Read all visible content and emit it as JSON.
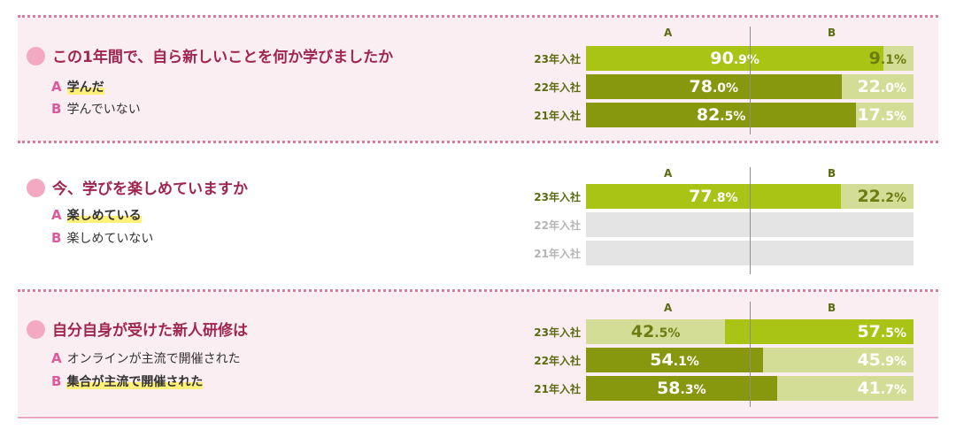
{
  "colors": {
    "bright_green": "#a9c414",
    "dark_green": "#87980f",
    "light_green": "#d3dd95",
    "empty": "#e4e4e4",
    "title": "#a0264f",
    "key": "#e0589a",
    "row_label": "#5a6b10"
  },
  "questions": [
    {
      "title": "この1年間で、自ら新しいことを何か学びましたか",
      "option_a": "学んだ",
      "option_b": "学んでいない",
      "col_a": "A",
      "col_b": "B",
      "rows": [
        {
          "label": "23年入社",
          "a": 90.9,
          "b": 9.1,
          "a_text": "90.9",
          "b_text": "9.1",
          "a_color": "bright_green",
          "b_color": "light_green",
          "a_text_color": "#ffffff",
          "b_text_color": "#6d7d12"
        },
        {
          "label": "22年入社",
          "a": 78.0,
          "b": 22.0,
          "a_text": "78.0",
          "b_text": "22.0",
          "a_color": "dark_green",
          "b_color": "light_green",
          "a_text_color": "#ffffff",
          "b_text_color": "#ffffff"
        },
        {
          "label": "21年入社",
          "a": 82.5,
          "b": 17.5,
          "a_text": "82.5",
          "b_text": "17.5",
          "a_color": "dark_green",
          "b_color": "light_green",
          "a_text_color": "#ffffff",
          "b_text_color": "#ffffff"
        }
      ]
    },
    {
      "title": "今、学びを楽しめていますか",
      "option_a": "楽しめている",
      "option_b": "楽しめていない",
      "col_a": "A",
      "col_b": "B",
      "rows": [
        {
          "label": "23年入社",
          "a": 77.8,
          "b": 22.2,
          "a_text": "77.8",
          "b_text": "22.2",
          "a_color": "bright_green",
          "b_color": "light_green",
          "a_text_color": "#ffffff",
          "b_text_color": "#6d7d12"
        },
        {
          "label": "22年入社",
          "empty": true
        },
        {
          "label": "21年入社",
          "empty": true
        }
      ]
    },
    {
      "title": "自分自身が受けた新人研修は",
      "option_a": "オンラインが主流で開催された",
      "option_b": "集合が主流で開催された",
      "col_a": "A",
      "col_b": "B",
      "rows": [
        {
          "label": "23年入社",
          "a": 42.5,
          "b": 57.5,
          "a_text": "42.5",
          "b_text": "57.5",
          "a_color": "light_green",
          "b_color": "bright_green",
          "a_text_color": "#6d7d12",
          "b_text_color": "#ffffff"
        },
        {
          "label": "22年入社",
          "a": 54.1,
          "b": 45.9,
          "a_text": "54.1",
          "b_text": "45.9",
          "a_color": "dark_green",
          "b_color": "light_green",
          "a_text_color": "#ffffff",
          "b_text_color": "#ffffff"
        },
        {
          "label": "21年入社",
          "a": 58.3,
          "b": 41.7,
          "a_text": "58.3",
          "b_text": "41.7",
          "a_color": "dark_green",
          "b_color": "light_green",
          "a_text_color": "#ffffff",
          "b_text_color": "#ffffff"
        }
      ]
    }
  ],
  "percent_sign": "%",
  "chart_data": [
    {
      "type": "bar",
      "title": "この1年間で、自ら新しいことを何か学びましたか",
      "categories": [
        "23年入社",
        "22年入社",
        "21年入社"
      ],
      "series": [
        {
          "name": "A",
          "values": [
            90.9,
            78.0,
            82.5
          ]
        },
        {
          "name": "B",
          "values": [
            9.1,
            22.0,
            17.5
          ]
        }
      ],
      "stacked": true,
      "orientation": "horizontal",
      "ylim": [
        0,
        100
      ]
    },
    {
      "type": "bar",
      "title": "今、学びを楽しめていますか",
      "categories": [
        "23年入社",
        "22年入社",
        "21年入社"
      ],
      "series": [
        {
          "name": "A",
          "values": [
            77.8,
            null,
            null
          ]
        },
        {
          "name": "B",
          "values": [
            22.2,
            null,
            null
          ]
        }
      ],
      "stacked": true,
      "orientation": "horizontal",
      "ylim": [
        0,
        100
      ]
    },
    {
      "type": "bar",
      "title": "自分自身が受けた新人研修は",
      "categories": [
        "23年入社",
        "22年入社",
        "21年入社"
      ],
      "series": [
        {
          "name": "A",
          "values": [
            42.5,
            54.1,
            58.3
          ]
        },
        {
          "name": "B",
          "values": [
            57.5,
            45.9,
            41.7
          ]
        }
      ],
      "stacked": true,
      "orientation": "horizontal",
      "ylim": [
        0,
        100
      ]
    }
  ]
}
